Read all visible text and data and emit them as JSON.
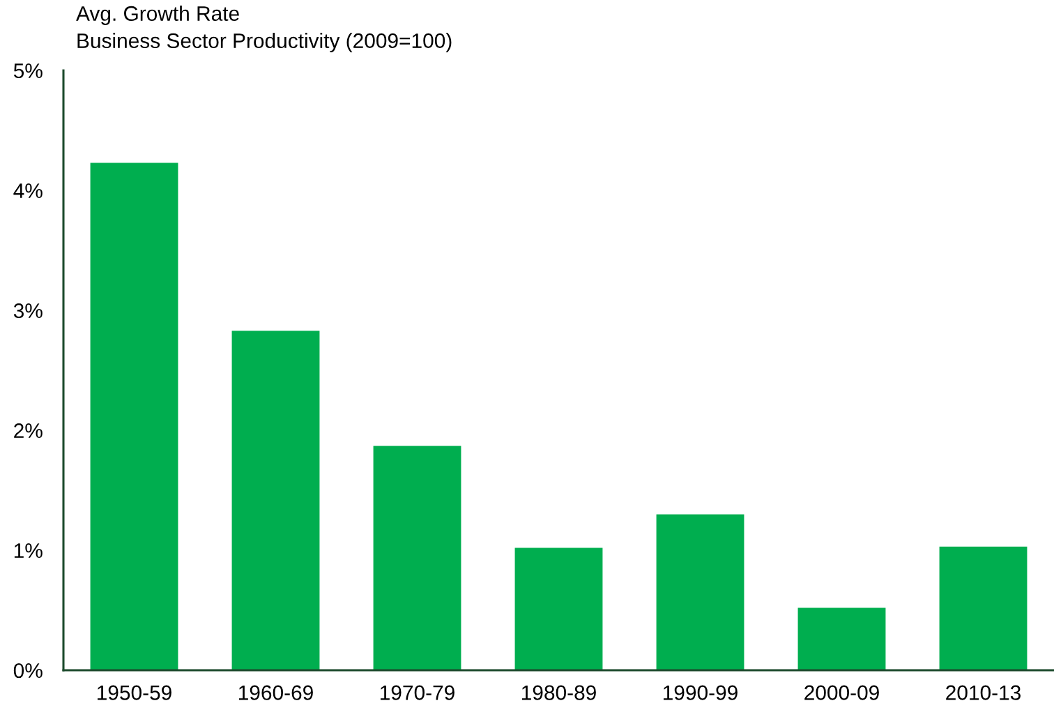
{
  "chart_data": {
    "type": "bar",
    "title": "Avg. Growth Rate",
    "subtitle": "Business Sector Productivity (2009=100)",
    "categories": [
      "1950-59",
      "1960-69",
      "1970-79",
      "1980-89",
      "1990-99",
      "2000-09",
      "2010-13"
    ],
    "values": [
      4.23,
      2.83,
      1.87,
      1.02,
      1.3,
      0.52,
      1.03
    ],
    "color": "#00ae4f",
    "ylim": [
      0,
      5
    ],
    "yticks": [
      {
        "value": 0,
        "label": "0%"
      },
      {
        "value": 1,
        "label": "1%"
      },
      {
        "value": 2,
        "label": "2%"
      },
      {
        "value": 3,
        "label": "3%"
      },
      {
        "value": 4,
        "label": "4%"
      },
      {
        "value": 5,
        "label": "5%"
      }
    ],
    "grid": false,
    "legend": false
  }
}
